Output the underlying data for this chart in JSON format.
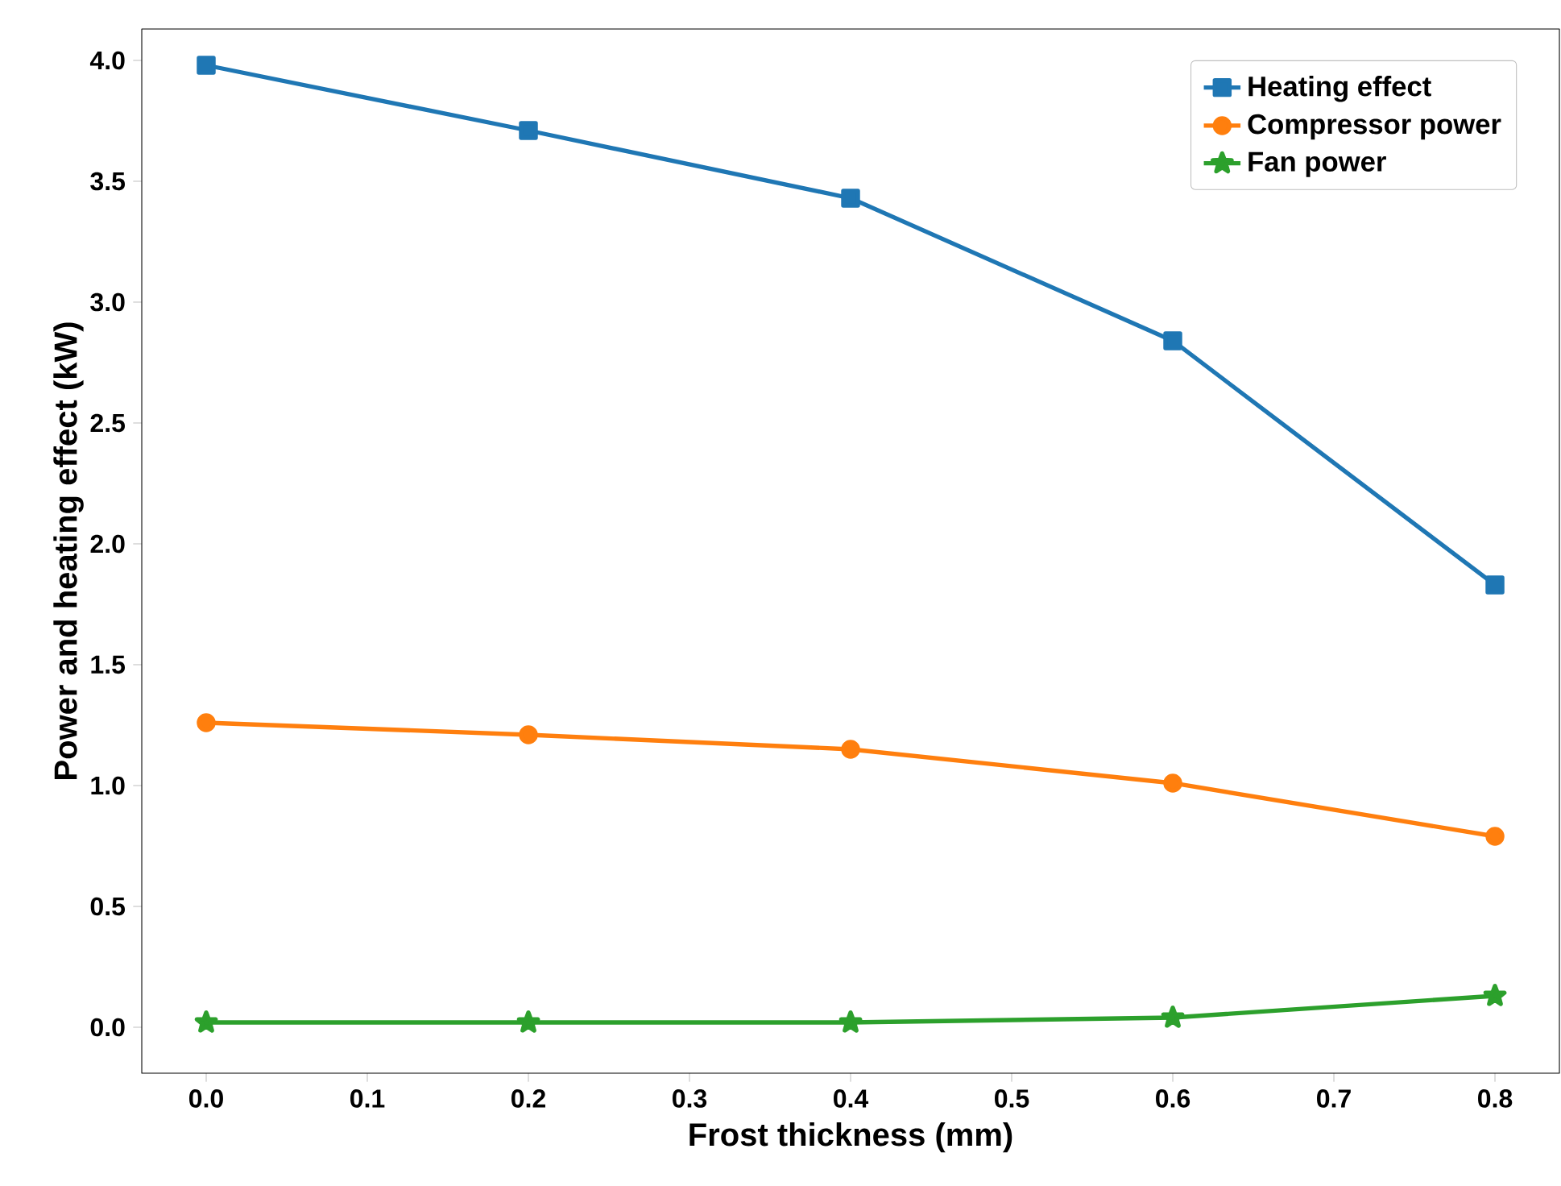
{
  "chart_data": {
    "type": "line",
    "xlabel": "Frost thickness (mm)",
    "ylabel": "Power and heating effect (kW)",
    "x": [
      0.0,
      0.2,
      0.4,
      0.6,
      0.8
    ],
    "series": [
      {
        "name": "Heating effect",
        "color": "#1f77b4",
        "marker": "square",
        "values": [
          3.98,
          3.71,
          3.43,
          2.84,
          1.83
        ]
      },
      {
        "name": "Compressor power",
        "color": "#ff7f0e",
        "marker": "circle",
        "values": [
          1.26,
          1.21,
          1.15,
          1.01,
          0.79
        ]
      },
      {
        "name": "Fan power",
        "color": "#2ca02c",
        "marker": "star",
        "values": [
          0.02,
          0.02,
          0.02,
          0.04,
          0.13
        ]
      }
    ],
    "xlim": [
      -0.04,
      0.84
    ],
    "ylim": [
      -0.19,
      4.13
    ],
    "xticks": [
      {
        "value": 0.0,
        "label": "0.0"
      },
      0.1,
      0.2,
      0.3,
      0.4,
      0.5,
      0.6,
      0.7,
      0.8
    ],
    "yticks": [
      {
        "value": 0.0,
        "label": "0.0"
      },
      0.5,
      {
        "value": 1.0,
        "label": "1.0"
      },
      1.5,
      {
        "value": 2.0,
        "label": "2.0"
      },
      2.5,
      {
        "value": 3.0,
        "label": "3.0"
      },
      3.5,
      {
        "value": 4.0,
        "label": "4.0"
      }
    ],
    "grid": false,
    "legend": "top right",
    "line_style": "solid"
  }
}
